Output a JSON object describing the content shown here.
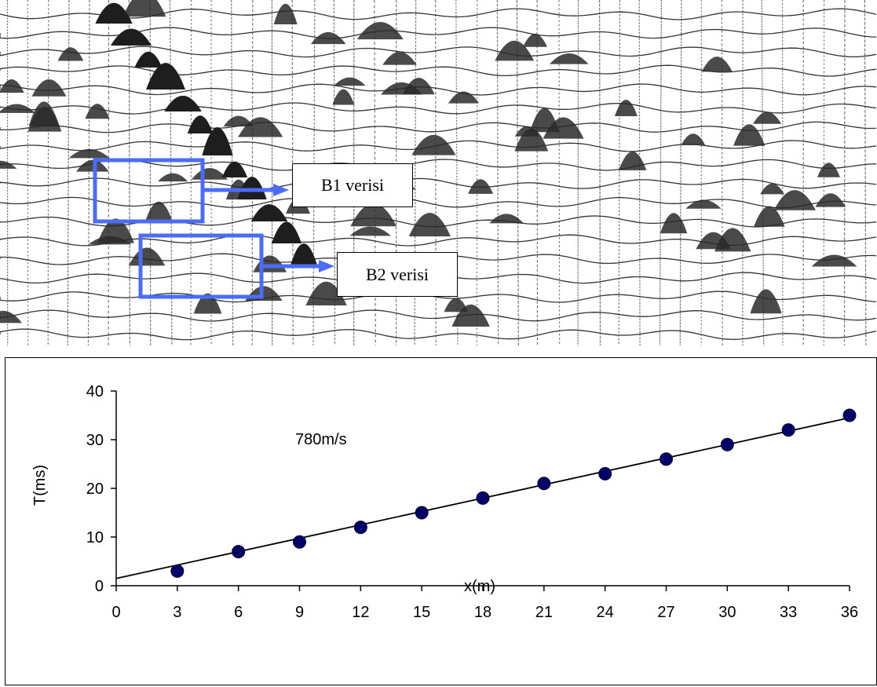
{
  "seismogram": {
    "callouts": [
      {
        "label": "B1 verisi"
      },
      {
        "label": "B2 verisi"
      }
    ],
    "box_color": "#4a6cf7",
    "trace_color": "#333333"
  },
  "chart_data": {
    "type": "scatter",
    "title": "",
    "xlabel": "x(m)",
    "ylabel": "T(ms)",
    "xlim": [
      0,
      36
    ],
    "ylim": [
      0,
      40
    ],
    "xticks": [
      0,
      3,
      6,
      9,
      12,
      15,
      18,
      21,
      24,
      27,
      30,
      33,
      36
    ],
    "yticks": [
      0,
      10,
      20,
      30,
      40
    ],
    "annotation": "780m/s",
    "marker_color": "#000066",
    "grid": false,
    "legend": "none",
    "points": {
      "x": [
        3,
        6,
        9,
        12,
        15,
        18,
        21,
        24,
        27,
        30,
        33,
        36
      ],
      "y": [
        3,
        7,
        9,
        12,
        15,
        18,
        21,
        23,
        26,
        29,
        32,
        35
      ]
    },
    "fit_line": {
      "x": [
        0,
        36
      ],
      "y": [
        1.5,
        34.5
      ]
    }
  }
}
